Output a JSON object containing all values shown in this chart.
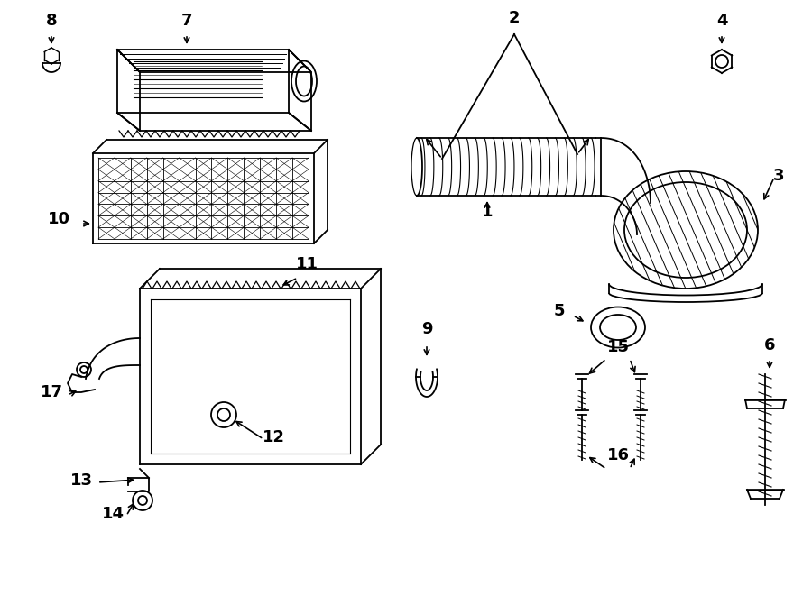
{
  "bg_color": "#ffffff",
  "line_color": "#000000",
  "lw": 1.3
}
